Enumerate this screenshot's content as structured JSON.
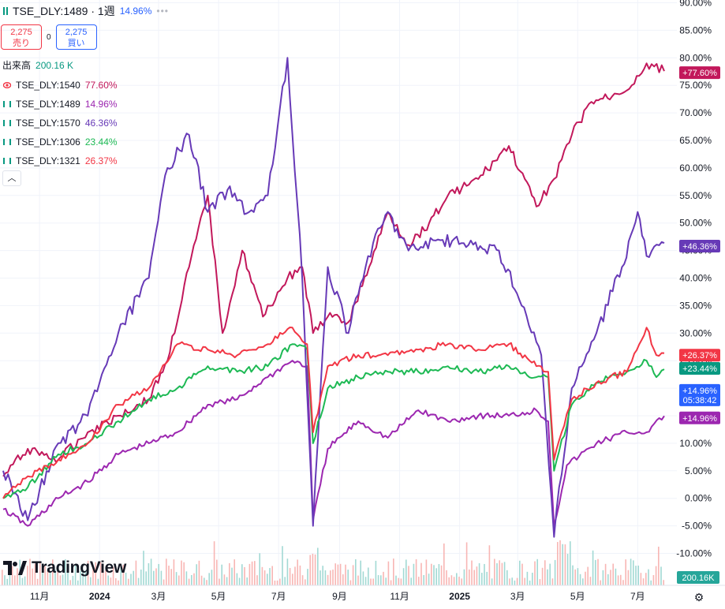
{
  "header": {
    "symbol": "TSE_DLY:1489 · 1週",
    "change": "14.96%",
    "more": "•••"
  },
  "trade": {
    "sell_price": "2,275",
    "sell_label": "売り",
    "spread": "0",
    "buy_price": "2,275",
    "buy_label": "買い"
  },
  "volume": {
    "label": "出来高",
    "value": "200.16 K"
  },
  "legend": [
    {
      "symbol": "TSE_DLY:1540",
      "value": "77.60%",
      "color": "#c2185b",
      "icon": "eye-icon"
    },
    {
      "symbol": "TSE_DLY:1489",
      "value": "14.96%",
      "color": "#9c27b0",
      "icon": "bars-icon"
    },
    {
      "symbol": "TSE_DLY:1570",
      "value": "46.36%",
      "color": "#673ab7",
      "icon": "bars-icon"
    },
    {
      "symbol": "TSE_DLY:1306",
      "value": "23.44%",
      "color": "#1db954",
      "icon": "bars-icon"
    },
    {
      "symbol": "TSE_DLY:1321",
      "value": "26.37%",
      "color": "#f23645",
      "icon": "bars-icon"
    }
  ],
  "collapse_icon": "chevron-up-icon",
  "logo": {
    "text": "TradingView",
    "icon": "tradingview-logo-icon"
  },
  "settings_icon": "gear-icon",
  "chart_data": {
    "type": "line",
    "y_unit": "%",
    "ylim": [
      -12,
      90
    ],
    "y_ticks": [
      "90.00%",
      "85.00%",
      "80.00%",
      "75.00%",
      "70.00%",
      "65.00%",
      "60.00%",
      "55.00%",
      "50.00%",
      "45.00%",
      "40.00%",
      "35.00%",
      "30.00%",
      "25.00%",
      "20.00%",
      "15.00%",
      "10.00%",
      "5.00%",
      "0.00%",
      "-5.00%",
      "-10.00%"
    ],
    "y_tick_values": [
      90,
      85,
      80,
      75,
      70,
      65,
      60,
      55,
      50,
      45,
      40,
      35,
      30,
      25,
      20,
      15,
      10,
      5,
      0,
      -5,
      -10
    ],
    "x_ticks": [
      "11月",
      "2024",
      "3月",
      "5月",
      "7月",
      "9月",
      "11月",
      "2025",
      "3月",
      "5月",
      "7月"
    ],
    "x_tick_bold": [
      false,
      true,
      false,
      false,
      false,
      false,
      false,
      true,
      false,
      false,
      false
    ],
    "x_domain": [
      "2023-09-25",
      "2025-07-28"
    ],
    "x_tick_dates": [
      "2023-11-01",
      "2024-01-01",
      "2024-03-01",
      "2024-05-01",
      "2024-07-01",
      "2024-09-01",
      "2024-11-01",
      "2025-01-01",
      "2025-03-01",
      "2025-05-01",
      "2025-07-01"
    ],
    "series": [
      {
        "name": "TSE_DLY:1540",
        "color": "#c2185b",
        "last_label": "+77.60%",
        "x": [
          "2023-09-25",
          "2023-10-20",
          "2023-11-20",
          "2023-12-20",
          "2024-01-20",
          "2024-02-20",
          "2024-03-10",
          "2024-04-01",
          "2024-04-20",
          "2024-05-05",
          "2024-05-25",
          "2024-06-15",
          "2024-07-10",
          "2024-07-25",
          "2024-08-05",
          "2024-08-20",
          "2024-09-10",
          "2024-10-01",
          "2024-10-20",
          "2024-11-10",
          "2024-12-01",
          "2024-12-20",
          "2025-01-20",
          "2025-02-20",
          "2025-03-20",
          "2025-04-07",
          "2025-04-25",
          "2025-05-15",
          "2025-06-05",
          "2025-06-25",
          "2025-07-10",
          "2025-07-28"
        ],
        "y": [
          4,
          9,
          7,
          12,
          15,
          18,
          25,
          42,
          55,
          30,
          45,
          33,
          40,
          42,
          30,
          33,
          32,
          42,
          52,
          46,
          50,
          55,
          58,
          64,
          53,
          58,
          66,
          72,
          73,
          75,
          79,
          77.6
        ]
      },
      {
        "name": "TSE_DLY:1489",
        "color": "#9c27b0",
        "last_label": "+14.96%",
        "x": [
          "2023-09-25",
          "2023-10-20",
          "2023-11-20",
          "2023-12-20",
          "2024-01-20",
          "2024-02-20",
          "2024-03-20",
          "2024-04-20",
          "2024-05-20",
          "2024-06-20",
          "2024-07-15",
          "2024-07-30",
          "2024-08-05",
          "2024-08-20",
          "2024-09-20",
          "2024-10-20",
          "2024-11-20",
          "2024-12-20",
          "2025-01-20",
          "2025-02-20",
          "2025-03-20",
          "2025-04-01",
          "2025-04-07",
          "2025-04-20",
          "2025-05-20",
          "2025-06-20",
          "2025-07-10",
          "2025-07-28"
        ],
        "y": [
          -2,
          -5,
          0,
          3,
          8,
          10,
          12,
          17,
          18,
          22,
          25,
          24,
          -4,
          9,
          14,
          11,
          16,
          14,
          15,
          15,
          16,
          14,
          -5,
          6,
          10,
          12,
          12,
          14.96
        ]
      },
      {
        "name": "TSE_DLY:1570",
        "color": "#673ab7",
        "last_label": "+46.36%",
        "x": [
          "2023-09-25",
          "2023-10-20",
          "2023-11-20",
          "2023-12-20",
          "2024-01-20",
          "2024-02-20",
          "2024-03-10",
          "2024-04-01",
          "2024-04-20",
          "2024-05-10",
          "2024-06-01",
          "2024-06-20",
          "2024-07-10",
          "2024-07-25",
          "2024-08-05",
          "2024-08-20",
          "2024-09-10",
          "2024-09-30",
          "2024-10-20",
          "2024-11-10",
          "2024-12-10",
          "2025-01-10",
          "2025-02-10",
          "2025-03-05",
          "2025-03-25",
          "2025-04-07",
          "2025-04-25",
          "2025-05-20",
          "2025-06-15",
          "2025-07-01",
          "2025-07-10",
          "2025-07-28"
        ],
        "y": [
          5,
          -4,
          10,
          15,
          30,
          40,
          60,
          66,
          52,
          56,
          52,
          55,
          80,
          40,
          -5,
          42,
          30,
          44,
          52,
          45,
          47,
          46,
          45,
          35,
          26,
          -7,
          20,
          30,
          42,
          52,
          44,
          46.36
        ]
      },
      {
        "name": "TSE_DLY:1306",
        "color": "#1db954",
        "last_label": "+23.44%",
        "x": [
          "2023-09-25",
          "2023-10-20",
          "2023-11-20",
          "2023-12-20",
          "2024-01-20",
          "2024-02-20",
          "2024-03-20",
          "2024-04-20",
          "2024-05-20",
          "2024-06-20",
          "2024-07-15",
          "2024-07-30",
          "2024-08-05",
          "2024-08-20",
          "2024-09-20",
          "2024-10-20",
          "2024-11-20",
          "2024-12-20",
          "2025-01-20",
          "2025-02-20",
          "2025-03-20",
          "2025-04-01",
          "2025-04-07",
          "2025-04-25",
          "2025-05-20",
          "2025-06-20",
          "2025-07-10",
          "2025-07-20",
          "2025-07-28"
        ],
        "y": [
          0,
          2,
          8,
          10,
          14,
          18,
          20,
          24,
          23,
          24,
          28,
          27,
          10,
          20,
          22,
          23,
          23,
          24,
          23,
          24,
          22,
          22,
          5,
          17,
          21,
          23,
          25,
          22,
          23.44
        ]
      },
      {
        "name": "TSE_DLY:1321",
        "color": "#f23645",
        "last_label": "+26.37%",
        "x": [
          "2023-09-25",
          "2023-10-20",
          "2023-11-20",
          "2023-12-20",
          "2024-01-20",
          "2024-02-20",
          "2024-03-20",
          "2024-04-20",
          "2024-05-20",
          "2024-06-20",
          "2024-07-15",
          "2024-07-30",
          "2024-08-05",
          "2024-08-20",
          "2024-09-20",
          "2024-10-20",
          "2024-11-20",
          "2024-12-20",
          "2025-01-20",
          "2025-02-20",
          "2025-03-20",
          "2025-04-01",
          "2025-04-07",
          "2025-04-25",
          "2025-05-20",
          "2025-06-20",
          "2025-07-10",
          "2025-07-20",
          "2025-07-28"
        ],
        "y": [
          0,
          4,
          7,
          10,
          17,
          20,
          28,
          27,
          26,
          28,
          31,
          28,
          12,
          24,
          26,
          26,
          27,
          28,
          27,
          28,
          24,
          23,
          7,
          18,
          21,
          23,
          31,
          26,
          26.37
        ]
      }
    ],
    "extra_price_labels": [
      {
        "text": "+14.96%",
        "sub": "05:38:42",
        "value": 14.96,
        "color": "#2962ff"
      }
    ],
    "volume_label": "200.16K",
    "volume_note": "volume histogram along bottom, teal and salmon bars"
  }
}
